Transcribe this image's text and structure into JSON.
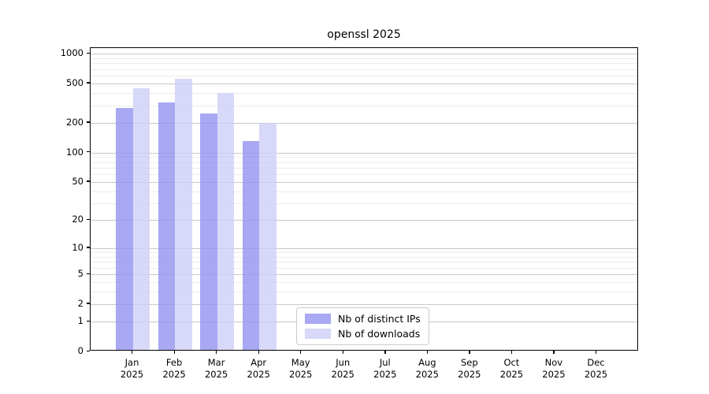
{
  "chart_data": {
    "type": "bar",
    "title": "openssl 2025",
    "categories": [
      "Jan",
      "Feb",
      "Mar",
      "Apr",
      "May",
      "Jun",
      "Jul",
      "Aug",
      "Sep",
      "Oct",
      "Nov",
      "Dec"
    ],
    "year_label": "2025",
    "series": [
      {
        "name": "Nb of distinct IPs",
        "color": "rgba(146,146,240,0.8)",
        "values": [
          275,
          310,
          240,
          125,
          null,
          null,
          null,
          null,
          null,
          null,
          null,
          null
        ]
      },
      {
        "name": "Nb of downloads",
        "color": "rgba(206,206,247,0.8)",
        "values": [
          435,
          535,
          385,
          193,
          null,
          null,
          null,
          null,
          null,
          null,
          null,
          null
        ]
      }
    ],
    "yscale": "log1p",
    "yticks": [
      1000,
      500,
      200,
      100,
      50,
      20,
      10,
      5,
      2,
      1,
      0
    ],
    "ylim": [
      0,
      1136
    ],
    "grid": "major+minor",
    "grid_major_color": "#c9c9c9",
    "grid_minor_color": "#ececec",
    "legend_position": "lower center"
  }
}
